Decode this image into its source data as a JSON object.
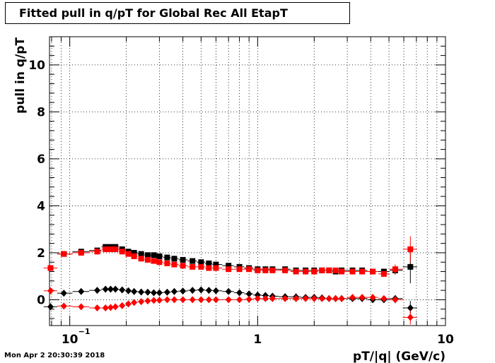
{
  "title": "Fitted pull in q/pT for Global Rec All EtapT",
  "timestamp": "Mon Apr  2 20:30:39 2018",
  "chart_data": {
    "type": "scatter",
    "xlabel": "pT/|q| (GeV/c)",
    "ylabel": "pull in q/pT",
    "x_scale": "log",
    "xlim": [
      0.078,
      10
    ],
    "ylim": [
      -1.1,
      11.2
    ],
    "x_ticks": [
      {
        "value": 0.1,
        "label": "10",
        "exp": "−1"
      },
      {
        "value": 1,
        "label": "1"
      },
      {
        "value": 10,
        "label": "10"
      }
    ],
    "y_ticks": [
      0,
      2,
      4,
      6,
      8,
      10
    ],
    "grid": true,
    "series": [
      {
        "marker": "square",
        "color": "#000000",
        "x": [
          0.079,
          0.093,
          0.115,
          0.14,
          0.155,
          0.165,
          0.175,
          0.19,
          0.205,
          0.22,
          0.24,
          0.26,
          0.28,
          0.3,
          0.33,
          0.36,
          0.4,
          0.45,
          0.5,
          0.55,
          0.6,
          0.7,
          0.8,
          0.9,
          1.0,
          1.1,
          1.2,
          1.4,
          1.6,
          1.8,
          2.0,
          2.2,
          2.4,
          2.6,
          2.8,
          3.2,
          3.6,
          4.1,
          4.7,
          5.4,
          6.5
        ],
        "y": [
          1.35,
          1.95,
          2.05,
          2.1,
          2.25,
          2.25,
          2.25,
          2.15,
          2.05,
          2.0,
          1.95,
          1.9,
          1.9,
          1.85,
          1.8,
          1.75,
          1.7,
          1.65,
          1.6,
          1.55,
          1.5,
          1.45,
          1.4,
          1.35,
          1.3,
          1.3,
          1.3,
          1.3,
          1.25,
          1.25,
          1.25,
          1.25,
          1.25,
          1.2,
          1.25,
          1.25,
          1.25,
          1.2,
          1.2,
          1.25,
          1.4
        ],
        "yerr": [
          0.06,
          0.06,
          0.06,
          0.05,
          0.04,
          0.04,
          0.04,
          0.03,
          0.03,
          0.03,
          0.03,
          0.03,
          0.03,
          0.03,
          0.03,
          0.03,
          0.03,
          0.03,
          0.03,
          0.03,
          0.03,
          0.03,
          0.03,
          0.03,
          0.03,
          0.03,
          0.03,
          0.03,
          0.04,
          0.04,
          0.04,
          0.05,
          0.05,
          0.05,
          0.06,
          0.07,
          0.08,
          0.1,
          0.12,
          0.18,
          0.7
        ]
      },
      {
        "marker": "square",
        "color": "#ff0000",
        "x": [
          0.079,
          0.093,
          0.115,
          0.14,
          0.155,
          0.165,
          0.175,
          0.19,
          0.205,
          0.22,
          0.24,
          0.26,
          0.28,
          0.3,
          0.33,
          0.36,
          0.4,
          0.45,
          0.5,
          0.55,
          0.6,
          0.7,
          0.8,
          0.9,
          1.0,
          1.1,
          1.2,
          1.4,
          1.6,
          1.8,
          2.0,
          2.2,
          2.4,
          2.6,
          2.8,
          3.2,
          3.6,
          4.1,
          4.7,
          5.4,
          6.5
        ],
        "y": [
          1.35,
          1.95,
          2.0,
          2.05,
          2.15,
          2.15,
          2.15,
          2.05,
          1.95,
          1.85,
          1.75,
          1.7,
          1.65,
          1.6,
          1.55,
          1.5,
          1.45,
          1.4,
          1.4,
          1.35,
          1.35,
          1.3,
          1.3,
          1.3,
          1.25,
          1.25,
          1.25,
          1.25,
          1.2,
          1.2,
          1.2,
          1.25,
          1.25,
          1.25,
          1.2,
          1.2,
          1.2,
          1.2,
          1.1,
          1.3,
          2.15
        ],
        "yerr": [
          0.06,
          0.06,
          0.06,
          0.05,
          0.04,
          0.04,
          0.04,
          0.03,
          0.03,
          0.03,
          0.03,
          0.03,
          0.03,
          0.03,
          0.03,
          0.03,
          0.03,
          0.03,
          0.03,
          0.03,
          0.03,
          0.03,
          0.03,
          0.03,
          0.03,
          0.03,
          0.03,
          0.03,
          0.04,
          0.04,
          0.04,
          0.05,
          0.05,
          0.05,
          0.06,
          0.07,
          0.08,
          0.1,
          0.12,
          0.2,
          0.55
        ]
      },
      {
        "marker": "diamond",
        "color": "#000000",
        "x": [
          0.079,
          0.093,
          0.115,
          0.14,
          0.155,
          0.165,
          0.175,
          0.19,
          0.205,
          0.22,
          0.24,
          0.26,
          0.28,
          0.3,
          0.33,
          0.36,
          0.4,
          0.45,
          0.5,
          0.55,
          0.6,
          0.7,
          0.8,
          0.9,
          1.0,
          1.1,
          1.2,
          1.4,
          1.6,
          1.8,
          2.0,
          2.2,
          2.4,
          2.6,
          2.8,
          3.2,
          3.6,
          4.1,
          4.7,
          5.4,
          6.5
        ],
        "y": [
          -0.3,
          0.28,
          0.35,
          0.4,
          0.45,
          0.45,
          0.45,
          0.42,
          0.38,
          0.35,
          0.33,
          0.32,
          0.3,
          0.3,
          0.32,
          0.35,
          0.37,
          0.4,
          0.42,
          0.4,
          0.38,
          0.35,
          0.3,
          0.25,
          0.2,
          0.18,
          0.15,
          0.13,
          0.12,
          0.1,
          0.1,
          0.08,
          0.05,
          0.05,
          0.05,
          0.05,
          0.05,
          0.0,
          0.0,
          0.05,
          -0.35
        ],
        "yerr": [
          0.05,
          0.05,
          0.05,
          0.04,
          0.03,
          0.03,
          0.03,
          0.03,
          0.03,
          0.03,
          0.03,
          0.03,
          0.03,
          0.03,
          0.03,
          0.03,
          0.03,
          0.03,
          0.03,
          0.03,
          0.03,
          0.03,
          0.03,
          0.03,
          0.03,
          0.03,
          0.03,
          0.03,
          0.03,
          0.03,
          0.04,
          0.04,
          0.04,
          0.05,
          0.05,
          0.06,
          0.07,
          0.08,
          0.1,
          0.15,
          0.3
        ]
      },
      {
        "marker": "diamond",
        "color": "#ff0000",
        "x": [
          0.079,
          0.093,
          0.115,
          0.14,
          0.155,
          0.165,
          0.175,
          0.19,
          0.205,
          0.22,
          0.24,
          0.26,
          0.28,
          0.3,
          0.33,
          0.36,
          0.4,
          0.45,
          0.5,
          0.55,
          0.6,
          0.7,
          0.8,
          0.9,
          1.0,
          1.1,
          1.2,
          1.4,
          1.6,
          1.8,
          2.0,
          2.2,
          2.4,
          2.6,
          2.8,
          3.2,
          3.6,
          4.1,
          4.7,
          5.4,
          6.5
        ],
        "y": [
          0.38,
          -0.27,
          -0.3,
          -0.35,
          -0.35,
          -0.33,
          -0.3,
          -0.25,
          -0.18,
          -0.12,
          -0.08,
          -0.05,
          -0.03,
          -0.02,
          0.0,
          0.0,
          0.0,
          0.0,
          0.0,
          0.0,
          0.0,
          0.0,
          0.0,
          0.02,
          0.05,
          0.05,
          0.05,
          0.05,
          0.05,
          0.05,
          0.05,
          0.05,
          0.05,
          0.05,
          0.05,
          0.1,
          0.1,
          0.1,
          0.05,
          0.0,
          -0.75
        ],
        "yerr": [
          0.05,
          0.05,
          0.05,
          0.04,
          0.03,
          0.03,
          0.03,
          0.03,
          0.03,
          0.03,
          0.03,
          0.03,
          0.03,
          0.03,
          0.03,
          0.03,
          0.03,
          0.03,
          0.03,
          0.03,
          0.03,
          0.03,
          0.03,
          0.03,
          0.03,
          0.03,
          0.03,
          0.03,
          0.03,
          0.03,
          0.04,
          0.04,
          0.04,
          0.05,
          0.05,
          0.06,
          0.07,
          0.08,
          0.1,
          0.15,
          0.3
        ]
      }
    ]
  }
}
